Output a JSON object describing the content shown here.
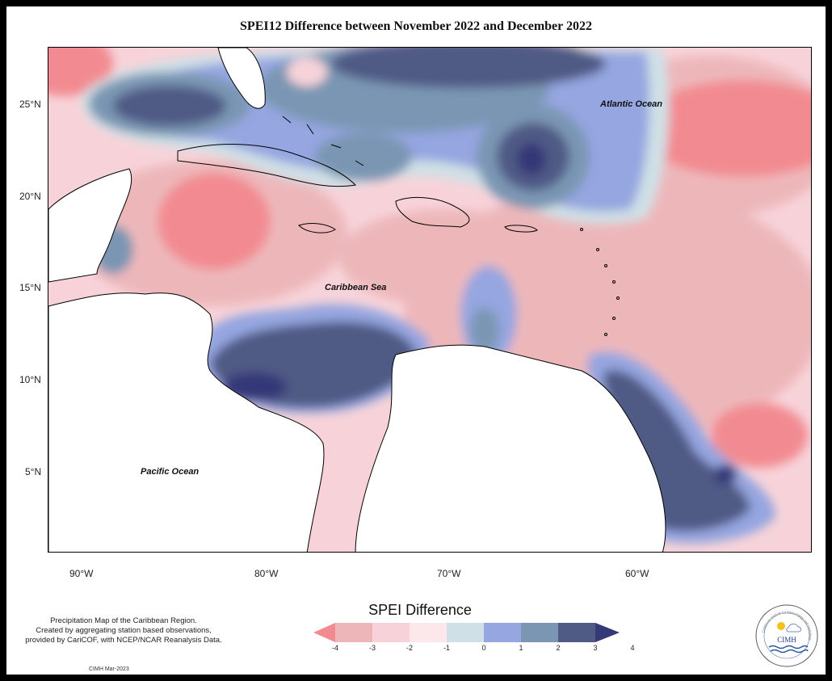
{
  "title": "SPEI12 Difference between November 2022 and December 2022",
  "labels": {
    "atlantic": "Atlantic Ocean",
    "caribbean": "Caribbean Sea",
    "pacific": "Pacific Ocean"
  },
  "lat_ticks": [
    "25°N",
    "20°N",
    "15°N",
    "10°N",
    "5°N"
  ],
  "lon_ticks": [
    "90°W",
    "80°W",
    "70°W",
    "60°W"
  ],
  "legend": {
    "title": "SPEI Difference",
    "ticks": [
      "-4",
      "-3",
      "-2",
      "-1",
      "0",
      "1",
      "2",
      "3",
      "4"
    ],
    "colors": [
      "#f28b91",
      "#edb7ba",
      "#f7d3d9",
      "#fce8ea",
      "#cfe0e6",
      "#95a6e0",
      "#7a96b3",
      "#4f5a85",
      "#363978"
    ]
  },
  "footnote": {
    "line1": "Precipitation Map of the Caribbean Region.",
    "line2": "Created by aggregating station based observations,",
    "line3": "provided by CariCOF, with NCEP/NCAR Reanalysis Data."
  },
  "credit": "CIMH Mar-2023",
  "logo": {
    "text": "CIMH",
    "ring_text": "Caribbean Institute for Meteorology and Hydrology"
  }
}
